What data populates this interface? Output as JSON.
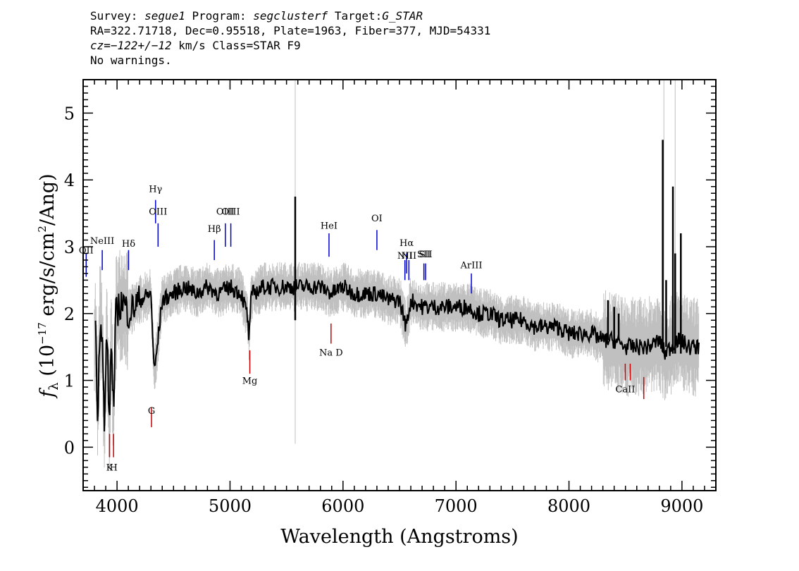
{
  "header": {
    "survey_label": "Survey:",
    "survey": "segue1",
    "program_label": "Program:",
    "program": "segclusterf",
    "target_label": "Target:",
    "target": "G_STAR",
    "line2": "RA=322.71718, Dec=0.95518, Plate=1963, Fiber=377, MJD=54331",
    "cz_label": "cz=",
    "cz_value": "−122+/−12",
    "cz_units": "km/s Class=STAR F9",
    "warnings": "No warnings."
  },
  "colors": {
    "flux": "#000000",
    "error": "#c0c0c0",
    "emission": "#0000cc",
    "absorption": "#cc0000"
  },
  "chart_data": {
    "type": "line",
    "xlabel": "Wavelength (Angstroms)",
    "ylabel_prefix": "f",
    "ylabel_sub": "λ",
    "ylabel_mid": " (10",
    "ylabel_sup1": "−17",
    "ylabel_mid2": " erg/s/cm",
    "ylabel_sup2": "2",
    "ylabel_end": "/Ang)",
    "xlim": [
      3700,
      9300
    ],
    "ylim": [
      -0.65,
      5.5
    ],
    "xticks": [
      "4000",
      "5000",
      "6000",
      "7000",
      "8000",
      "9000"
    ],
    "yticks": [
      "0",
      "1",
      "2",
      "3",
      "4",
      "5"
    ],
    "series": [
      {
        "role": "flux",
        "x": [
          3810,
          3830,
          3850,
          3870,
          3890,
          3910,
          3930,
          3950,
          3970,
          3990,
          4050,
          4100,
          4200,
          4300,
          4330,
          4400,
          4500,
          4600,
          4700,
          4800,
          4900,
          5000,
          5100,
          5150,
          5170,
          5180,
          5200,
          5300,
          5400,
          5500,
          5600,
          5700,
          5800,
          5900,
          6000,
          6100,
          6200,
          6300,
          6400,
          6500,
          6560,
          6600,
          6700,
          6800,
          6900,
          7000,
          7100,
          7200,
          7300,
          7400,
          7500,
          7600,
          7700,
          7800,
          7900,
          8000,
          8100,
          8200,
          8300,
          8400,
          8500,
          8600,
          8700,
          8800,
          8850,
          8900,
          8950,
          9000,
          9050,
          9100,
          9150
        ],
        "y": [
          1.7,
          0.5,
          2.0,
          1.5,
          0.2,
          1.9,
          0.3,
          1.6,
          0.5,
          2.0,
          2.2,
          2.0,
          2.2,
          2.3,
          1.1,
          2.2,
          2.3,
          2.4,
          2.3,
          2.4,
          2.3,
          2.4,
          2.3,
          2.0,
          1.6,
          2.1,
          2.3,
          2.4,
          2.4,
          2.4,
          2.4,
          2.4,
          2.4,
          2.3,
          2.4,
          2.3,
          2.3,
          2.3,
          2.2,
          2.2,
          1.8,
          2.2,
          2.1,
          2.1,
          2.1,
          2.1,
          2.1,
          2.0,
          2.0,
          1.9,
          1.9,
          1.9,
          1.8,
          1.8,
          1.8,
          1.7,
          1.7,
          1.7,
          1.6,
          1.6,
          1.5,
          1.5,
          1.5,
          1.6,
          1.4,
          1.5,
          1.6,
          1.6,
          1.5,
          1.5,
          1.5
        ]
      }
    ],
    "spikes": [
      {
        "x": 5577,
        "y0": 1.9,
        "y1": 3.75
      },
      {
        "x": 8345,
        "y0": 1.6,
        "y1": 2.2
      },
      {
        "x": 8400,
        "y0": 1.5,
        "y1": 2.1
      },
      {
        "x": 8440,
        "y0": 1.6,
        "y1": 2.0
      },
      {
        "x": 8830,
        "y0": 1.5,
        "y1": 4.6
      },
      {
        "x": 8860,
        "y0": 1.5,
        "y1": 2.5
      },
      {
        "x": 8920,
        "y0": 1.4,
        "y1": 3.9
      },
      {
        "x": 8940,
        "y0": 1.4,
        "y1": 2.9
      },
      {
        "x": 8990,
        "y0": 1.4,
        "y1": 3.2
      }
    ],
    "emission_lines": [
      {
        "label": "OII",
        "x": 3727,
        "y0": 2.55,
        "y1": 2.9,
        "ly": 2.9
      },
      {
        "label": "NeIII",
        "x": 3869,
        "y0": 2.65,
        "y1": 2.95,
        "ly": 3.04
      },
      {
        "label": "Hδ",
        "x": 4102,
        "y0": 2.65,
        "y1": 2.95,
        "ly": 3.0
      },
      {
        "label": "Hγ",
        "x": 4341,
        "y0": 3.35,
        "y1": 3.7,
        "ly": 3.82
      },
      {
        "label": "OIII",
        "x": 4363,
        "y0": 3.0,
        "y1": 3.35,
        "ly": 3.48
      },
      {
        "label": "Hβ",
        "x": 4861,
        "y0": 2.8,
        "y1": 3.1,
        "ly": 3.22
      },
      {
        "label": "OIII",
        "x": 4959,
        "y0": 3.0,
        "y1": 3.35,
        "ly": 3.48
      },
      {
        "label": "OIII",
        "x": 5007,
        "y0": 3.0,
        "y1": 3.35,
        "ly": 3.48
      },
      {
        "label": "HeI",
        "x": 5876,
        "y0": 2.85,
        "y1": 3.2,
        "ly": 3.27
      },
      {
        "label": "OI",
        "x": 6300,
        "y0": 2.95,
        "y1": 3.25,
        "ly": 3.38
      },
      {
        "label": "NII",
        "x": 6548,
        "y0": 2.5,
        "y1": 2.8,
        "ly": 2.82
      },
      {
        "label": "Hα",
        "x": 6563,
        "y0": 2.6,
        "y1": 2.9,
        "ly": 3.01
      },
      {
        "label": "NII",
        "x": 6583,
        "y0": 2.5,
        "y1": 2.8,
        "ly": 2.82
      },
      {
        "label": "SII",
        "x": 6716,
        "y0": 2.5,
        "y1": 2.75,
        "ly": 2.84
      },
      {
        "label": "SII",
        "x": 6731,
        "y0": 2.5,
        "y1": 2.75,
        "ly": 2.84
      },
      {
        "label": "ArIII",
        "x": 7136,
        "y0": 2.3,
        "y1": 2.6,
        "ly": 2.68
      }
    ],
    "absorption_lines": [
      {
        "label": "K",
        "x": 3934,
        "y0": -0.15,
        "y1": 0.2,
        "ly": -0.35
      },
      {
        "label": "H",
        "x": 3969,
        "y0": -0.15,
        "y1": 0.2,
        "ly": -0.35
      },
      {
        "label": "G",
        "x": 4305,
        "y0": 0.3,
        "y1": 0.6,
        "ly": 0.5
      },
      {
        "label": "Mg",
        "x": 5175,
        "y0": 1.1,
        "y1": 1.45,
        "ly": 0.95
      },
      {
        "label": "Na D",
        "x": 5894,
        "y0": 1.55,
        "y1": 1.85,
        "ly": 1.37
      },
      {
        "label": "CaII",
        "x": 8498,
        "y0": 1.0,
        "y1": 1.25,
        "ly": 0.82
      },
      {
        "label": "CaII",
        "x": 8542,
        "y0": 1.0,
        "y1": 1.25,
        "ly": null
      },
      {
        "label": "CaII",
        "x": 8662,
        "y0": 0.72,
        "y1": 1.05,
        "ly": null
      }
    ]
  }
}
